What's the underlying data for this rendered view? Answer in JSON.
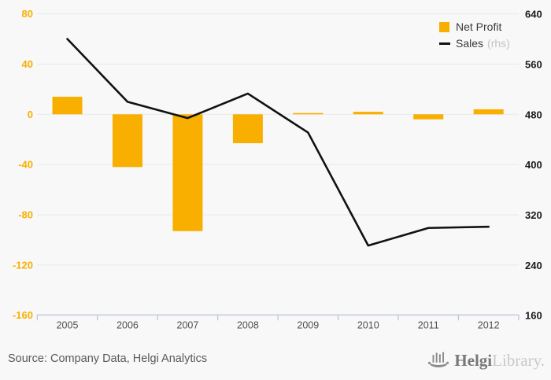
{
  "chart_data": {
    "type": "bar",
    "subtype": "bar-and-line-dual-axis",
    "categories": [
      "2005",
      "2006",
      "2007",
      "2008",
      "2009",
      "2010",
      "2011",
      "2012"
    ],
    "series": [
      {
        "name": "Net Profit",
        "type": "bar",
        "axis": "left",
        "color": "#F9AF00",
        "values": [
          14,
          -42,
          -93,
          -23,
          1,
          2,
          -4,
          4
        ]
      },
      {
        "name": "Sales",
        "type": "line",
        "axis": "right",
        "axis_suffix": "(rhs)",
        "color": "#111111",
        "values": [
          600,
          500,
          474,
          513,
          451,
          271,
          299,
          301
        ]
      }
    ],
    "title": "",
    "xlabel": "",
    "ylabel": "",
    "left_axis": {
      "ticks": [
        80,
        40,
        0,
        -40,
        -80,
        -120,
        -160
      ],
      "ylim": [
        -160,
        80
      ],
      "color": "#F9AF00"
    },
    "right_axis": {
      "ticks": [
        640,
        560,
        480,
        400,
        320,
        240,
        160
      ],
      "ylim": [
        160,
        640
      ],
      "color": "#1a1a1a"
    },
    "grid": true,
    "legend_position": "top-right"
  },
  "colors": {
    "background": "#f8f8f8",
    "gridline": "#e9e9e9",
    "x_axis_line": "#b7c3da",
    "year_label": "#4f4f4f"
  },
  "footer": {
    "source": "Source: Company Data, Helgi Analytics",
    "logo_primary": "Helgi",
    "logo_secondary": "Library."
  }
}
